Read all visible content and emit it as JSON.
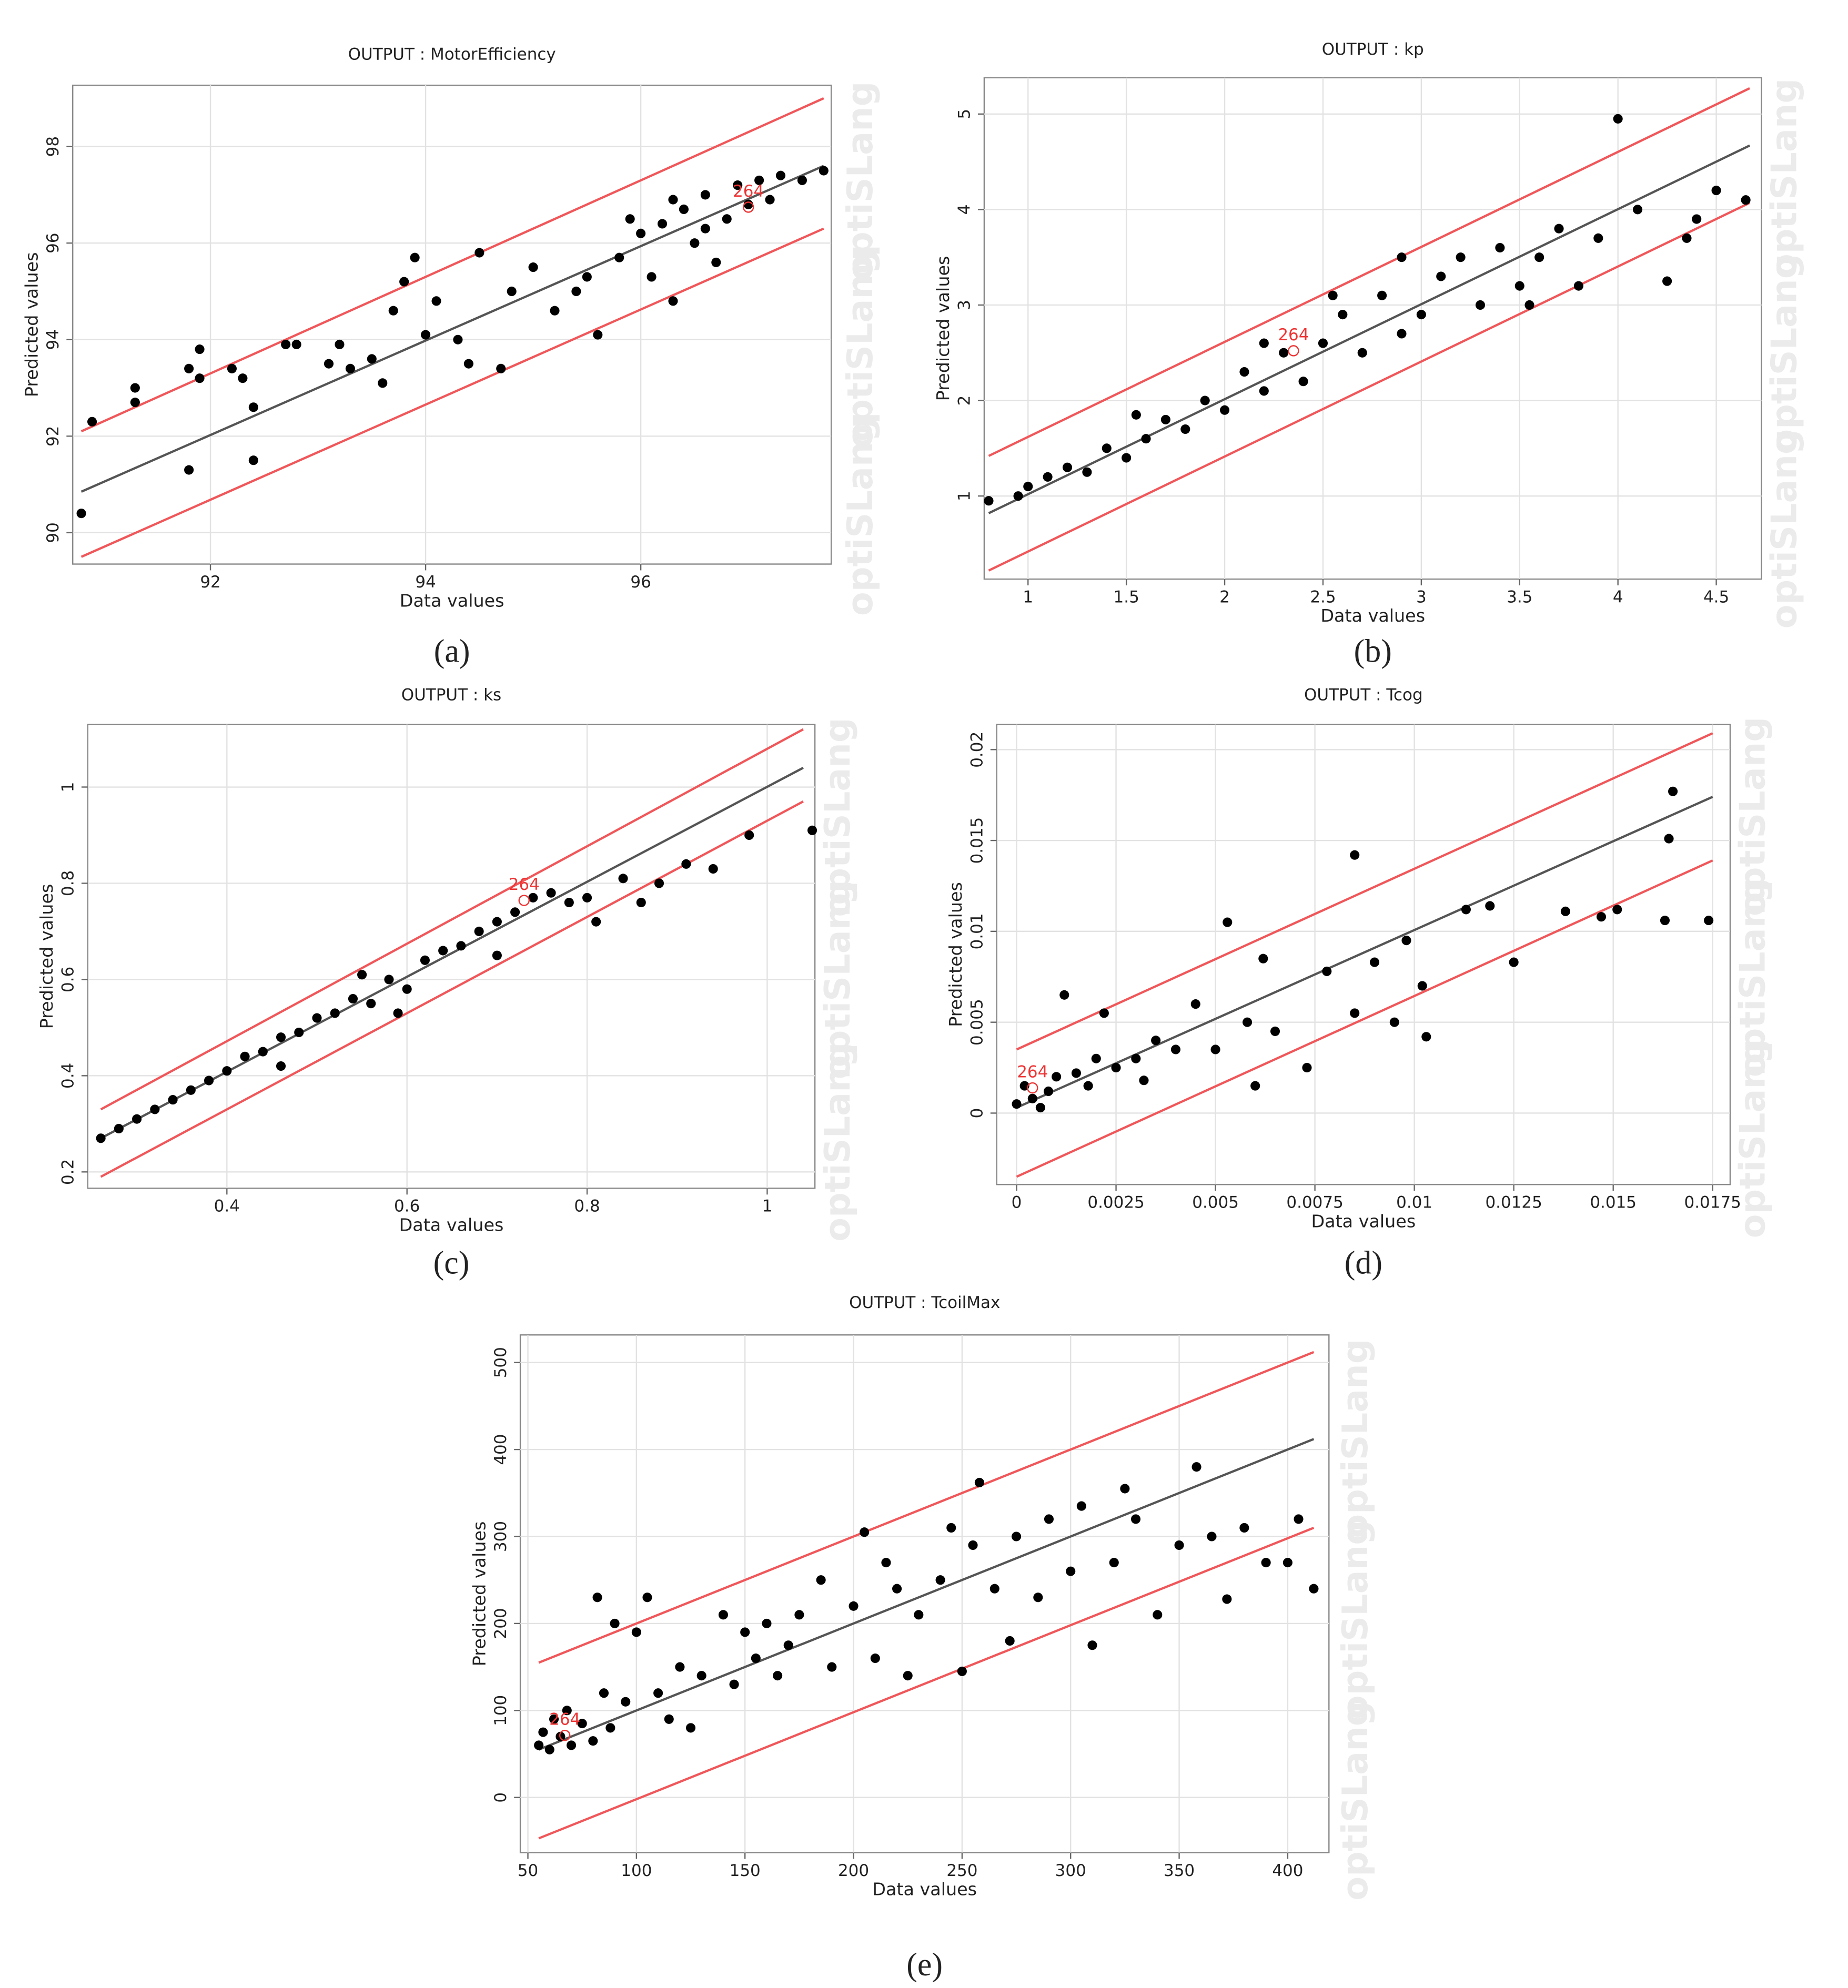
{
  "watermark": "optiSLang",
  "chart_data": [
    {
      "type": "scatter",
      "title": "OUTPUT : MotorEfficiency",
      "caption": "(a)",
      "x_label": "Data values",
      "y_label": "Predicted values",
      "xlim": [
        90.72,
        97.77
      ],
      "ylim": [
        89.35,
        99.27
      ],
      "xticks": [
        92,
        94,
        96
      ],
      "yticks": [
        90,
        92,
        94,
        96,
        98
      ],
      "grid": true,
      "color": "#000000",
      "x": [
        90.8,
        90.9,
        91.3,
        91.3,
        91.8,
        91.9,
        91.9,
        91.8,
        92.2,
        92.3,
        92.4,
        92.4,
        92.7,
        92.8,
        93.1,
        93.2,
        93.3,
        93.5,
        93.6,
        93.7,
        93.8,
        93.9,
        94.0,
        94.1,
        94.3,
        94.4,
        94.5,
        94.7,
        94.8,
        95.0,
        95.2,
        95.5,
        95.6,
        95.8,
        96.0,
        96.1,
        96.2,
        96.3,
        96.4,
        96.5,
        96.6,
        96.7,
        96.8,
        96.9,
        97.0,
        97.1,
        97.2,
        97.3,
        97.5,
        97.7,
        95.9,
        96.3,
        96.6,
        95.4
      ],
      "y": [
        90.4,
        92.3,
        93.0,
        92.7,
        93.4,
        93.8,
        93.2,
        91.3,
        93.4,
        93.2,
        92.6,
        91.5,
        93.9,
        93.9,
        93.5,
        93.9,
        93.4,
        93.6,
        93.1,
        94.6,
        95.2,
        95.7,
        94.1,
        94.8,
        94.0,
        93.5,
        95.8,
        93.4,
        95.0,
        95.5,
        94.6,
        95.3,
        94.1,
        95.7,
        96.2,
        95.3,
        96.4,
        94.8,
        96.7,
        96.0,
        97.0,
        95.6,
        96.5,
        97.2,
        96.8,
        97.3,
        96.9,
        97.4,
        97.3,
        97.5,
        96.5,
        96.9,
        96.3,
        95.0
      ],
      "fit_line": {
        "x": [
          90.8,
          97.7
        ],
        "y": [
          90.85,
          97.6
        ]
      },
      "upper_bound": {
        "x": [
          90.8,
          97.7
        ],
        "y": [
          92.1,
          99.0
        ]
      },
      "lower_bound": {
        "x": [
          90.8,
          97.7
        ],
        "y": [
          89.5,
          96.3
        ]
      },
      "annotation": {
        "text": "264",
        "x": 97.0,
        "y": 96.9
      }
    },
    {
      "type": "scatter",
      "title": "OUTPUT : kp",
      "caption": "(b)",
      "x_label": "Data values",
      "y_label": "Predicted values",
      "xlim": [
        0.777,
        4.73
      ],
      "ylim": [
        0.13,
        5.38
      ],
      "xticks": [
        1,
        1.5,
        2,
        2.5,
        3,
        3.5,
        4,
        4.5
      ],
      "yticks": [
        1,
        2,
        3,
        4,
        5
      ],
      "grid": true,
      "color": "#000000",
      "x": [
        0.8,
        0.95,
        1.0,
        1.1,
        1.2,
        1.3,
        1.4,
        1.5,
        1.6,
        1.7,
        1.8,
        1.9,
        2.0,
        2.1,
        2.2,
        2.3,
        2.4,
        2.5,
        2.6,
        2.7,
        2.8,
        2.9,
        3.0,
        3.1,
        3.2,
        3.3,
        3.4,
        3.5,
        3.6,
        3.7,
        3.8,
        3.9,
        4.0,
        4.1,
        4.25,
        4.35,
        4.4,
        4.5,
        4.65,
        2.55,
        1.55,
        2.2,
        2.9,
        3.55
      ],
      "y": [
        0.95,
        1.0,
        1.1,
        1.2,
        1.3,
        1.25,
        1.5,
        1.4,
        1.6,
        1.8,
        1.7,
        2.0,
        1.9,
        2.3,
        2.1,
        2.5,
        2.2,
        2.6,
        2.9,
        2.5,
        3.1,
        2.7,
        2.9,
        3.3,
        3.5,
        3.0,
        3.6,
        3.2,
        3.5,
        3.8,
        3.2,
        3.7,
        4.95,
        4.0,
        3.25,
        3.7,
        3.9,
        4.2,
        4.1,
        3.1,
        1.85,
        2.6,
        3.5,
        3.0
      ],
      "fit_line": {
        "x": [
          0.8,
          4.67
        ],
        "y": [
          0.82,
          4.67
        ]
      },
      "upper_bound": {
        "x": [
          0.8,
          4.67
        ],
        "y": [
          1.42,
          5.27
        ]
      },
      "lower_bound": {
        "x": [
          0.8,
          4.67
        ],
        "y": [
          0.22,
          4.07
        ]
      },
      "annotation": {
        "text": "264",
        "x": 2.35,
        "y": 2.6
      }
    },
    {
      "type": "scatter",
      "title": "OUTPUT : ks",
      "caption": "(c)",
      "x_label": "Data values",
      "y_label": "Predicted values",
      "xlim": [
        0.2455,
        1.053
      ],
      "ylim": [
        0.166,
        1.13
      ],
      "xticks": [
        0.4,
        0.6,
        0.8,
        1
      ],
      "yticks": [
        0.2,
        0.4,
        0.6,
        0.8,
        1
      ],
      "grid": true,
      "color": "#000000",
      "x": [
        0.26,
        0.28,
        0.3,
        0.32,
        0.34,
        0.36,
        0.38,
        0.4,
        0.42,
        0.44,
        0.46,
        0.48,
        0.5,
        0.52,
        0.54,
        0.56,
        0.58,
        0.6,
        0.62,
        0.64,
        0.66,
        0.68,
        0.7,
        0.72,
        0.74,
        0.76,
        0.78,
        0.8,
        0.81,
        0.84,
        0.86,
        0.88,
        0.91,
        0.94,
        0.98,
        1.05,
        0.59,
        0.55,
        0.46,
        0.7
      ],
      "y": [
        0.27,
        0.29,
        0.31,
        0.33,
        0.35,
        0.37,
        0.39,
        0.41,
        0.44,
        0.45,
        0.48,
        0.49,
        0.52,
        0.53,
        0.56,
        0.55,
        0.6,
        0.58,
        0.64,
        0.66,
        0.67,
        0.7,
        0.72,
        0.74,
        0.77,
        0.78,
        0.76,
        0.77,
        0.72,
        0.81,
        0.76,
        0.8,
        0.84,
        0.83,
        0.9,
        0.91,
        0.53,
        0.61,
        0.42,
        0.65
      ],
      "fit_line": {
        "x": [
          0.26,
          1.04
        ],
        "y": [
          0.27,
          1.04
        ]
      },
      "upper_bound": {
        "x": [
          0.26,
          1.04
        ],
        "y": [
          0.33,
          1.12
        ]
      },
      "lower_bound": {
        "x": [
          0.26,
          1.04
        ],
        "y": [
          0.19,
          0.97
        ]
      },
      "annotation": {
        "text": "264",
        "x": 0.73,
        "y": 0.78
      }
    },
    {
      "type": "scatter",
      "title": "OUTPUT : Tcog",
      "caption": "(d)",
      "x_label": "Data values",
      "y_label": "Predicted values",
      "xlim": [
        -0.0005,
        0.01794
      ],
      "ylim": [
        -0.00393,
        0.02138
      ],
      "xticks": [
        0,
        0.0025,
        0.005,
        0.0075,
        0.01,
        0.0125,
        0.015,
        0.0175
      ],
      "yticks": [
        0,
        0.005,
        0.01,
        0.015,
        0.02
      ],
      "grid": true,
      "color": "#000000",
      "x": [
        0,
        0.0002,
        0.0004,
        0.0006,
        0.0008,
        0.001,
        0.0012,
        0.0015,
        0.0018,
        0.002,
        0.0022,
        0.0025,
        0.003,
        0.0032,
        0.0035,
        0.004,
        0.0045,
        0.005,
        0.0053,
        0.0058,
        0.006,
        0.0062,
        0.0065,
        0.0073,
        0.0078,
        0.0085,
        0.0085,
        0.009,
        0.0095,
        0.0098,
        0.0102,
        0.0103,
        0.0113,
        0.0119,
        0.0125,
        0.0138,
        0.0147,
        0.0151,
        0.0163,
        0.0164,
        0.0165,
        0.0174
      ],
      "y": [
        0.0005,
        0.0015,
        0.0008,
        0.0003,
        0.0012,
        0.002,
        0.0065,
        0.0022,
        0.0015,
        0.003,
        0.0055,
        0.0025,
        0.003,
        0.0018,
        0.004,
        0.0035,
        0.006,
        0.0035,
        0.0105,
        0.005,
        0.0015,
        0.0085,
        0.0045,
        0.0025,
        0.0078,
        0.0142,
        0.0055,
        0.0083,
        0.005,
        0.0095,
        0.007,
        0.0042,
        0.0112,
        0.0114,
        0.0083,
        0.0111,
        0.0108,
        0.0112,
        0.0106,
        0.0151,
        0.0177,
        0.0106
      ],
      "fit_line": {
        "x": [
          0,
          0.0175
        ],
        "y": [
          0.0003,
          0.0174
        ]
      },
      "upper_bound": {
        "x": [
          0,
          0.0175
        ],
        "y": [
          0.0035,
          0.0209
        ]
      },
      "lower_bound": {
        "x": [
          0,
          0.0175
        ],
        "y": [
          -0.0035,
          0.0139
        ]
      },
      "annotation": {
        "text": "264",
        "x": 0.0004,
        "y": 0.0018
      }
    },
    {
      "type": "scatter",
      "title": "OUTPUT : TcoilMax",
      "caption": "(e)",
      "x_label": "Data values",
      "y_label": "Predicted values",
      "xlim": [
        46.5,
        419
      ],
      "ylim": [
        -63.4,
        531.7
      ],
      "xticks": [
        50,
        100,
        150,
        200,
        250,
        300,
        350,
        400
      ],
      "yticks": [
        0,
        100,
        200,
        300,
        400,
        500
      ],
      "grid": true,
      "color": "#000000",
      "x": [
        55,
        57,
        60,
        62,
        65,
        68,
        70,
        75,
        80,
        82,
        85,
        88,
        90,
        95,
        100,
        105,
        110,
        115,
        120,
        125,
        130,
        140,
        145,
        150,
        155,
        160,
        165,
        170,
        175,
        185,
        190,
        200,
        205,
        210,
        215,
        220,
        225,
        230,
        240,
        245,
        250,
        255,
        258,
        265,
        272,
        275,
        285,
        290,
        300,
        305,
        310,
        320,
        325,
        330,
        340,
        350,
        358,
        365,
        372,
        380,
        390,
        400,
        405,
        412
      ],
      "y": [
        60,
        75,
        55,
        90,
        70,
        100,
        60,
        85,
        65,
        230,
        120,
        80,
        200,
        110,
        190,
        230,
        120,
        90,
        150,
        80,
        140,
        210,
        130,
        190,
        160,
        200,
        140,
        175,
        210,
        250,
        150,
        220,
        305,
        160,
        270,
        240,
        140,
        210,
        250,
        310,
        145,
        290,
        362,
        240,
        180,
        300,
        230,
        320,
        260,
        335,
        175,
        270,
        355,
        320,
        210,
        290,
        380,
        300,
        228,
        310,
        270,
        270,
        320,
        240
      ],
      "fit_line": {
        "x": [
          55,
          412
        ],
        "y": [
          55,
          412
        ]
      },
      "upper_bound": {
        "x": [
          55,
          412
        ],
        "y": [
          155,
          512
        ]
      },
      "lower_bound": {
        "x": [
          55,
          412
        ],
        "y": [
          -47,
          310
        ]
      },
      "annotation": {
        "text": "264",
        "x": 67,
        "y": 80
      }
    }
  ]
}
